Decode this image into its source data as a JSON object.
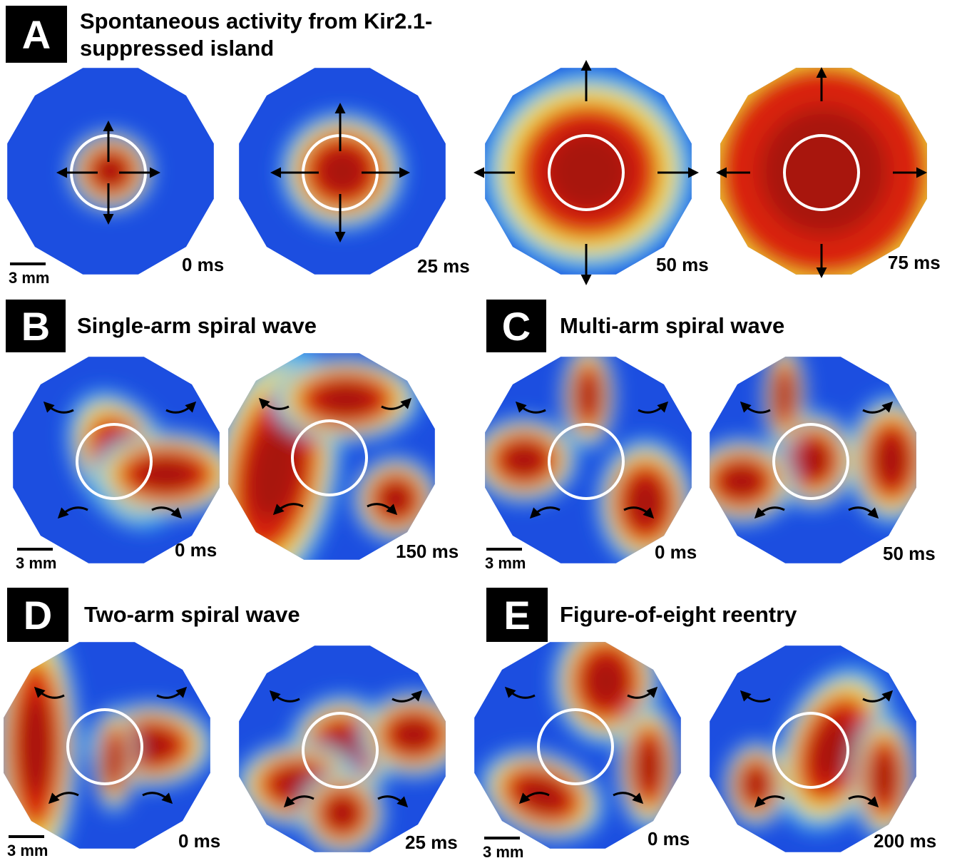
{
  "panels": [
    {
      "label": "A",
      "title": [
        "Spontaneous activity from Kir2.1-",
        "suppressed island"
      ],
      "scale_bar": "3 mm",
      "frames": [
        "0 ms",
        "25 ms",
        "50 ms",
        "75 ms"
      ]
    },
    {
      "label": "B",
      "title": [
        "Single-arm spiral wave"
      ],
      "scale_bar": "3 mm",
      "frames": [
        "0 ms",
        "150 ms"
      ]
    },
    {
      "label": "C",
      "title": [
        "Multi-arm spiral wave"
      ],
      "scale_bar": "3 mm",
      "frames": [
        "0 ms",
        "50 ms"
      ]
    },
    {
      "label": "D",
      "title": [
        "Two-arm spiral wave"
      ],
      "scale_bar": "3 mm",
      "frames": [
        "0 ms",
        "25 ms"
      ]
    },
    {
      "label": "E",
      "title": [
        "Figure-of-eight reentry"
      ],
      "scale_bar": "3 mm",
      "frames": [
        "0 ms",
        "200 ms"
      ]
    }
  ]
}
